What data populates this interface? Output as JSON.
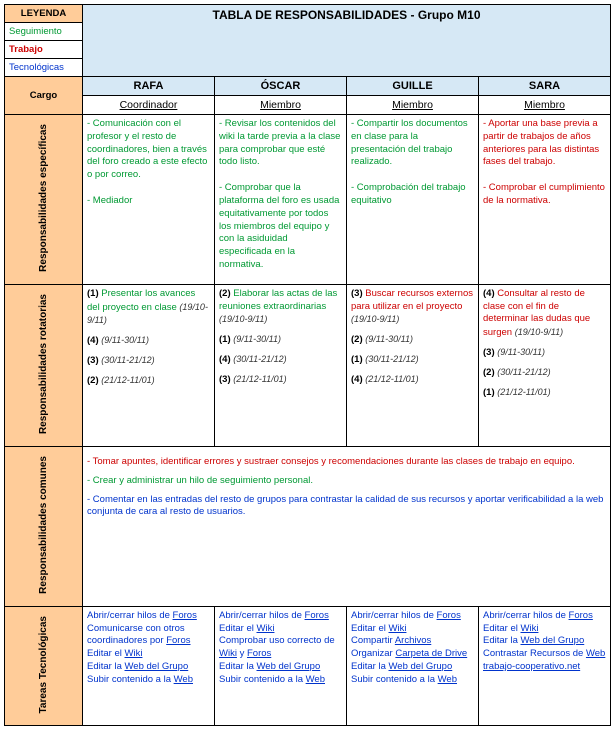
{
  "title": "TABLA DE RESPONSABILIDADES - Grupo M10",
  "legend": {
    "header": "LEYENDA",
    "seguimiento": "Seguimiento",
    "trabajo": "Trabajo",
    "tecnologicas": "Tecnológicas"
  },
  "members": [
    "RAFA",
    "ÓSCAR",
    "GUILLE",
    "SARA"
  ],
  "cargo": {
    "label": "Cargo",
    "values": [
      "Coordinador",
      "Miembro",
      "Miembro",
      "Miembro"
    ]
  },
  "rows": {
    "specific": {
      "label": "Responsabilidades específicas",
      "cells": [
        "- Comunicación con el profesor y el resto de coordinadores, bien a través del foro creado a este efecto o por correo.\n\n- Mediador",
        "- Revisar los contenidos del wiki la tarde previa a la clase para comprobar que esté todo listo.\n\n- Comprobar que la plataforma del foro es usada equitativamente por todos los miembros del equipo y con la asiduidad especificada en la normativa.",
        "- Compartir los documentos en clase para la presentación del trabajo realizado.\n\n- Comprobación del trabajo equitativo",
        "- Aportar una base previa a partir de trabajos de años anteriores para las distintas fases del trabajo.\n\n- Comprobar el cumplimiento de la normativa."
      ]
    },
    "rotating": {
      "label": "Responsabilidades rotatorias",
      "cells": [
        [
          {
            "n": "(1)",
            "color": "seg",
            "text": "Presentar los avances del proyecto en clase",
            "date": "(19/10-9/11)"
          },
          {
            "n": "(4)",
            "color": "",
            "text": "",
            "date": "(9/11-30/11)"
          },
          {
            "n": "(3)",
            "color": "",
            "text": "",
            "date": "(30/11-21/12)"
          },
          {
            "n": "(2)",
            "color": "",
            "text": "",
            "date": "(21/12-11/01)"
          }
        ],
        [
          {
            "n": "(2)",
            "color": "seg",
            "text": "Elaborar las actas de las reuniones extraordinarias",
            "date": "(19/10-9/11)"
          },
          {
            "n": "(1)",
            "color": "",
            "text": "",
            "date": "(9/11-30/11)"
          },
          {
            "n": "(4)",
            "color": "",
            "text": "",
            "date": "(30/11-21/12)"
          },
          {
            "n": "(3)",
            "color": "",
            "text": "",
            "date": "(21/12-11/01)"
          }
        ],
        [
          {
            "n": "(3)",
            "color": "tra",
            "text": "Buscar recursos externos para utilizar en el proyecto",
            "date": "(19/10-9/11)"
          },
          {
            "n": "(2)",
            "color": "",
            "text": "",
            "date": "(9/11-30/11)"
          },
          {
            "n": "(1)",
            "color": "",
            "text": "",
            "date": "(30/11-21/12)"
          },
          {
            "n": "(4)",
            "color": "",
            "text": "",
            "date": "(21/12-11/01)"
          }
        ],
        [
          {
            "n": "(4)",
            "color": "tra",
            "text": "Consultar al resto de clase con el fin de determinar las dudas que surgen",
            "date": "(19/10-9/11)"
          },
          {
            "n": "(3)",
            "color": "",
            "text": "",
            "date": "(9/11-30/11)"
          },
          {
            "n": "(2)",
            "color": "",
            "text": "",
            "date": "(30/11-21/12)"
          },
          {
            "n": "(1)",
            "color": "",
            "text": "",
            "date": "(21/12-11/01)"
          }
        ]
      ]
    },
    "common": {
      "label": "Responsabilidades comunes",
      "lines": [
        {
          "color": "tra",
          "text": "- Tomar apuntes, identificar errores y sustraer consejos y recomendaciones durante las clases de trabajo en equipo."
        },
        {
          "color": "seg",
          "text": "- Crear y administrar un hilo de seguimiento personal."
        },
        {
          "color": "tec",
          "text": "- Comentar en las entradas del resto de grupos para contrastar la calidad de sus recursos y aportar verificabilidad a la web conjunta de cara al resto de usuarios."
        }
      ]
    },
    "tech": {
      "label": "Tareas Tecnológicas",
      "cells": [
        [
          {
            "pre": "Abrir/cerrar hilos de ",
            "link": "Foros"
          },
          {
            "pre": "Comunicarse con otros coordinadores por ",
            "link": "Foros"
          },
          {
            "pre": "Editar el ",
            "link": "Wiki"
          },
          {
            "pre": "Editar la ",
            "link": "Web del Grupo"
          },
          {
            "pre": "Subir contenido a la ",
            "link": "Web"
          }
        ],
        [
          {
            "pre": "Abrir/cerrar hilos de ",
            "link": "Foros"
          },
          {
            "pre": "Editar el ",
            "link": "Wiki"
          },
          {
            "pre": "Comprobar uso correcto de ",
            "link": "Wiki",
            "post": " y ",
            "link2": "Foros"
          },
          {
            "pre": "Editar la ",
            "link": "Web del Grupo"
          },
          {
            "pre": "Subir contenido a la ",
            "link": "Web"
          }
        ],
        [
          {
            "pre": "Abrir/cerrar hilos de ",
            "link": "Foros"
          },
          {
            "pre": "Editar el ",
            "link": "Wiki"
          },
          {
            "pre": "Compartir ",
            "link": "Archivos"
          },
          {
            "pre": "Organizar ",
            "link": "Carpeta de Drive"
          },
          {
            "pre": "Editar la ",
            "link": "Web del Grupo"
          },
          {
            "pre": "Subir contenido a la ",
            "link": "Web"
          }
        ],
        [
          {
            "pre": "Abrir/cerrar hilos de ",
            "link": "Foros"
          },
          {
            "pre": "Editar el ",
            "link": "Wiki"
          },
          {
            "pre": "Editar la ",
            "link": "Web del Grupo"
          },
          {
            "pre": "Contrastar Recursos de ",
            "link": "Web trabajo-cooperativo.net"
          }
        ]
      ]
    }
  }
}
